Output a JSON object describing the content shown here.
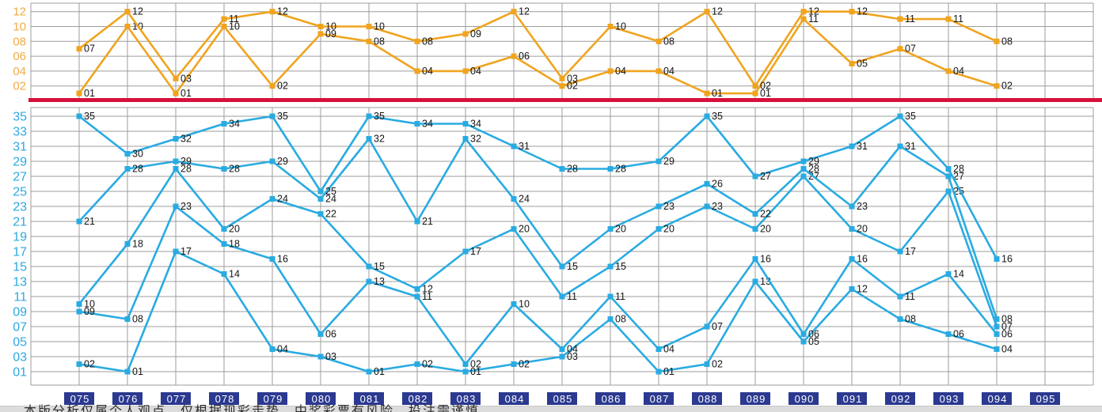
{
  "chart_data": {
    "type": "line",
    "title": "",
    "x_categories": [
      "075",
      "076",
      "077",
      "078",
      "079",
      "080",
      "081",
      "082",
      "083",
      "084",
      "085",
      "086",
      "087",
      "088",
      "089",
      "090",
      "091",
      "092",
      "093",
      "094",
      "095"
    ],
    "point_label_format": "2-digit-zero-padded",
    "grid": true,
    "legend": "none",
    "sections": [
      {
        "id": "back-zone-top",
        "ylim": [
          1,
          12
        ],
        "y_ticks": [
          "12",
          "10",
          "08",
          "06",
          "04",
          "02"
        ],
        "series": [
          {
            "name": "back-low",
            "values": [
              1,
              10,
              1,
              10,
              2,
              9,
              8,
              4,
              4,
              6,
              2,
              4,
              4,
              1,
              1,
              11,
              5,
              7,
              4,
              2
            ]
          },
          {
            "name": "back-high",
            "values": [
              7,
              12,
              3,
              11,
              12,
              10,
              10,
              8,
              9,
              12,
              3,
              10,
              8,
              12,
              2,
              12,
              12,
              11,
              11,
              8
            ]
          }
        ]
      },
      {
        "id": "front-zone-bottom",
        "ylim": [
          1,
          35
        ],
        "y_ticks": [
          "35",
          "33",
          "31",
          "29",
          "27",
          "25",
          "23",
          "21",
          "19",
          "17",
          "15",
          "13",
          "11",
          "09",
          "07",
          "05",
          "03",
          "01"
        ],
        "series": [
          {
            "name": "front-1",
            "values": [
              2,
              1,
              17,
              14,
              4,
              3,
              1,
              2,
              1,
              2,
              3,
              8,
              1,
              2,
              13,
              5,
              12,
              8,
              6,
              4
            ]
          },
          {
            "name": "front-2",
            "values": [
              9,
              8,
              23,
              18,
              16,
              6,
              13,
              11,
              2,
              10,
              4,
              11,
              4,
              7,
              16,
              6,
              16,
              11,
              14,
              6
            ]
          },
          {
            "name": "front-3",
            "values": [
              10,
              18,
              28,
              20,
              24,
              22,
              15,
              12,
              17,
              20,
              11,
              15,
              20,
              23,
              20,
              27,
              20,
              17,
              25,
              7
            ]
          },
          {
            "name": "front-4",
            "values": [
              21,
              28,
              29,
              28,
              29,
              24,
              32,
              21,
              32,
              24,
              15,
              20,
              23,
              26,
              22,
              28,
              23,
              31,
              27,
              8
            ]
          },
          {
            "name": "front-5",
            "values": [
              35,
              30,
              32,
              34,
              35,
              25,
              35,
              34,
              34,
              31,
              28,
              28,
              29,
              35,
              27,
              29,
              31,
              35,
              28,
              16
            ]
          }
        ]
      }
    ]
  },
  "colors": {
    "top_line": "#F0A41E",
    "top_axis_text": "#F0AC45",
    "bottom_line": "#29ABE2",
    "bottom_axis_text": "#2CA8E0",
    "separator": "#D8103C",
    "grid": "#9c9c9c",
    "point_label": "#141414",
    "x_box_bg": "#2B3990",
    "x_box_text": "#FFFFFF",
    "footer_band": "#DCDCDC"
  },
  "footer": {
    "disclaimer": "本版分析仅属个人观点，仅根据现彩走势，中奖彩票有风险，投注需谨慎"
  }
}
